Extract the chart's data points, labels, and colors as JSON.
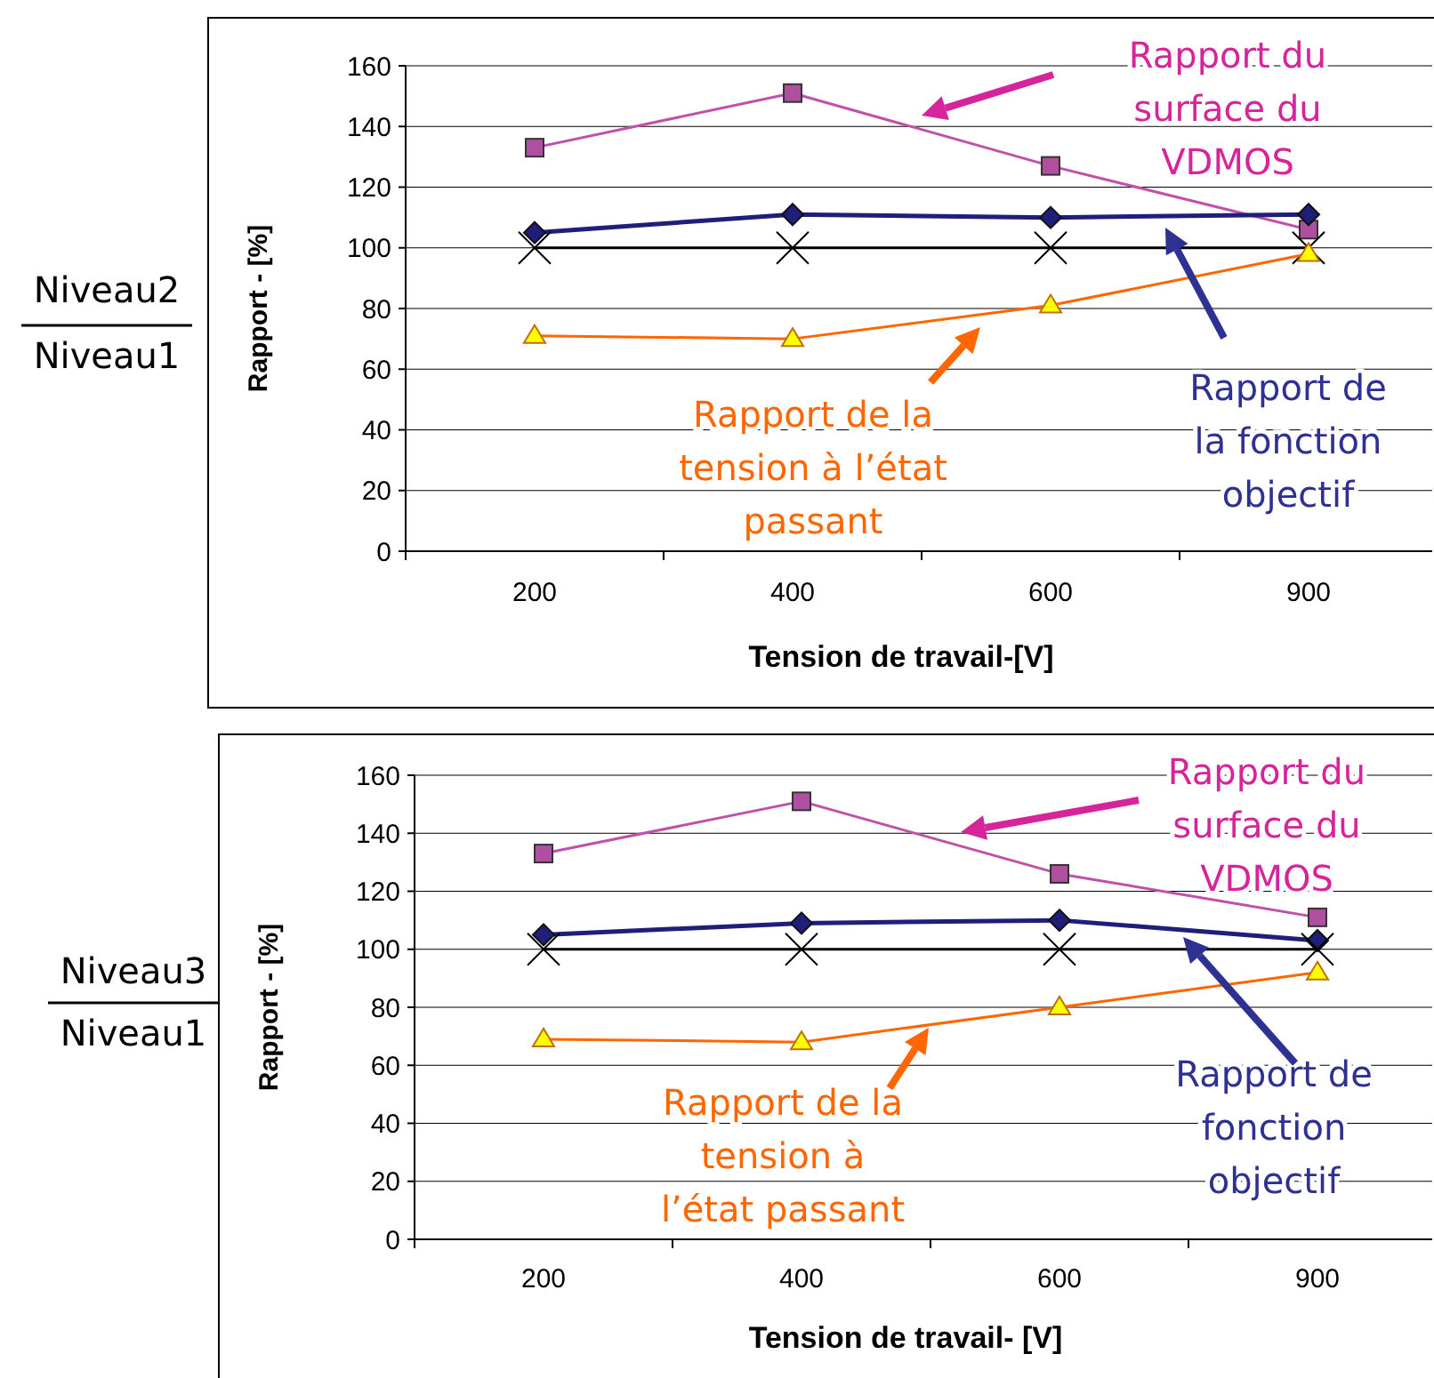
{
  "chart_data": [
    {
      "type": "line",
      "xlabel": "Tension de travail-[V]",
      "ylabel": "Rapport - [%]",
      "annotations": [
        "Niveau2",
        "Niveau1"
      ],
      "categories": [
        "200",
        "400",
        "600",
        "900"
      ],
      "ylim": [
        0,
        160
      ],
      "yticks": [
        0,
        20,
        40,
        60,
        80,
        100,
        120,
        140,
        160
      ],
      "grid": "y",
      "series": [
        {
          "name": "Rapport du surface du VDMOS",
          "color": "#c050a8",
          "marker": "square",
          "values": [
            133,
            151,
            127,
            106
          ]
        },
        {
          "name": "Rapport de la fonction objectif",
          "color": "#1f1f7a",
          "marker": "diamond",
          "values": [
            105,
            111,
            110,
            111
          ]
        },
        {
          "color": "#000000",
          "marker": "cross",
          "values": [
            100,
            100,
            100,
            100
          ]
        },
        {
          "name": "Rapport de la tension à l’état passant",
          "color": "#ff6600",
          "marker": "triangle",
          "values": [
            71,
            70,
            81,
            98
          ]
        }
      ]
    },
    {
      "type": "line",
      "xlabel": "Tension de travail- [V]",
      "ylabel": "Rapport - [%]",
      "annotations": [
        "Niveau3",
        "Niveau1"
      ],
      "categories": [
        "200",
        "400",
        "600",
        "900"
      ],
      "ylim": [
        0,
        160
      ],
      "yticks": [
        0,
        20,
        40,
        60,
        80,
        100,
        120,
        140,
        160
      ],
      "grid": "y",
      "series": [
        {
          "name": "Rapport du surface du VDMOS",
          "color": "#c050a8",
          "marker": "square",
          "values": [
            133,
            151,
            126,
            111
          ]
        },
        {
          "name": "Rapport de fonction objectif",
          "color": "#1f1f7a",
          "marker": "diamond",
          "values": [
            105,
            109,
            110,
            103
          ]
        },
        {
          "color": "#000000",
          "marker": "cross",
          "values": [
            100,
            100,
            100,
            100
          ]
        },
        {
          "name": "Rapport de la tension à l’état passant",
          "color": "#ff6600",
          "marker": "triangle",
          "values": [
            69,
            68,
            80,
            92
          ]
        }
      ]
    }
  ]
}
